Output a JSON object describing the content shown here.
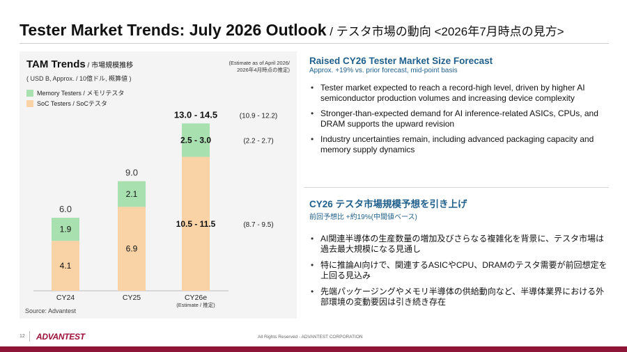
{
  "header": {
    "title": "Tester Market Trends: July 2026 Outlook",
    "title_jp": " / テスタ市場の動向 <2026年7月時点の見方>"
  },
  "chart_data": {
    "type": "bar",
    "stacked": true,
    "title": "TAM Trends",
    "title_jp": " / 市場規模推移",
    "units": "( USD B, Approx. / 10億ドル, 概算値 )",
    "note_line1": "(Estimate as of April 2026/",
    "note_line2": "2026年4月時点の推定)",
    "categories": [
      "CY24",
      "CY25",
      "CY26e"
    ],
    "category_sub": [
      "",
      "",
      "(Estimate / 推定)"
    ],
    "series": [
      {
        "name": "SoC Testers / SoCテスタ",
        "color": "#f9d2a6",
        "values": [
          4.1,
          6.9,
          11.0
        ],
        "labels": [
          "4.1",
          "6.9",
          "10.5 - 11.5"
        ]
      },
      {
        "name": "Memory Testers / メモリテスタ",
        "color": "#a8e0b0",
        "values": [
          1.9,
          2.1,
          2.75
        ],
        "labels": [
          "1.9",
          "2.1",
          "2.5 - 3.0"
        ]
      }
    ],
    "totals": [
      "6.0",
      "9.0",
      "13.0 - 14.5"
    ],
    "total_values": [
      6.0,
      9.0,
      13.75
    ],
    "prior_estimates": {
      "total": "(10.9 - 12.2)",
      "memory": "(2.2 - 2.7)",
      "soc": "(8.7 - 9.5)"
    },
    "source": "Source: Advantest"
  },
  "section_en": {
    "title": "Raised CY26 Tester Market Size Forecast",
    "subtitle": "Approx. +19% vs. prior forecast, mid-point basis",
    "bullets": [
      "Tester market expected to reach a record-high level, driven by higher AI semiconductor production volumes and increasing device complexity",
      "Stronger-than-expected demand for AI inference-related ASICs, CPUs, and DRAM supports the upward revision",
      "Industry uncertainties remain, including advanced packaging capacity and memory supply dynamics"
    ]
  },
  "section_jp": {
    "title": "CY26 テスタ市場規模予想を引き上げ",
    "subtitle": "前回予想比 +約19%(中間値ベース)",
    "bullets": [
      "AI関連半導体の生産数量の増加及びさらなる複雑化を背景に、テスタ市場は過去最大規模になる見通し",
      "特に推論AI向けで、関連するASICやCPU、DRAMのテスタ需要が前回想定を上回る見込み",
      "先端パッケージングやメモリ半導体の供給動向など、半導体業界における外部環境の変動要因は引き続き存在"
    ]
  },
  "footer": {
    "page_number": "12",
    "logo": "ADVANTEST",
    "copyright": "All Rights Reserved - ADVANTEST CORPORATION"
  },
  "colors": {
    "accent": "#1f5f8b",
    "brand": "#8e1537"
  }
}
